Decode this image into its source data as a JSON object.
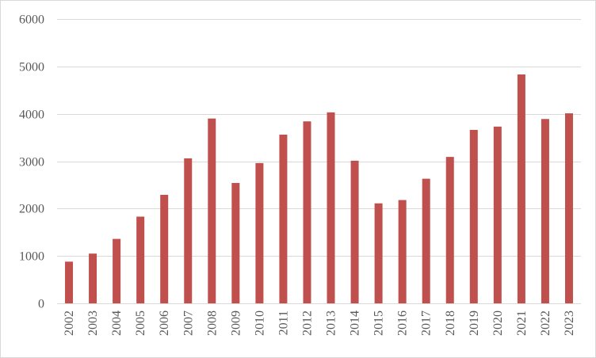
{
  "chart_data": {
    "type": "bar",
    "title": "",
    "xlabel": "",
    "ylabel": "",
    "categories": [
      "2002",
      "2003",
      "2004",
      "2005",
      "2006",
      "2007",
      "2008",
      "2009",
      "2010",
      "2011",
      "2012",
      "2013",
      "2014",
      "2015",
      "2016",
      "2017",
      "2018",
      "2019",
      "2020",
      "2021",
      "2022",
      "2023"
    ],
    "values": [
      880,
      1050,
      1360,
      1830,
      2290,
      3060,
      3900,
      2540,
      2960,
      3560,
      3840,
      4030,
      3010,
      2110,
      2180,
      2630,
      3090,
      3660,
      3730,
      4830,
      3890,
      4010
    ],
    "ylim": [
      0,
      6000
    ],
    "yticks": [
      0,
      1000,
      2000,
      3000,
      4000,
      5000,
      6000
    ],
    "bar_color": "#c0504d",
    "grid_color": "#d9d9d9",
    "grid": true,
    "legend": "none"
  }
}
